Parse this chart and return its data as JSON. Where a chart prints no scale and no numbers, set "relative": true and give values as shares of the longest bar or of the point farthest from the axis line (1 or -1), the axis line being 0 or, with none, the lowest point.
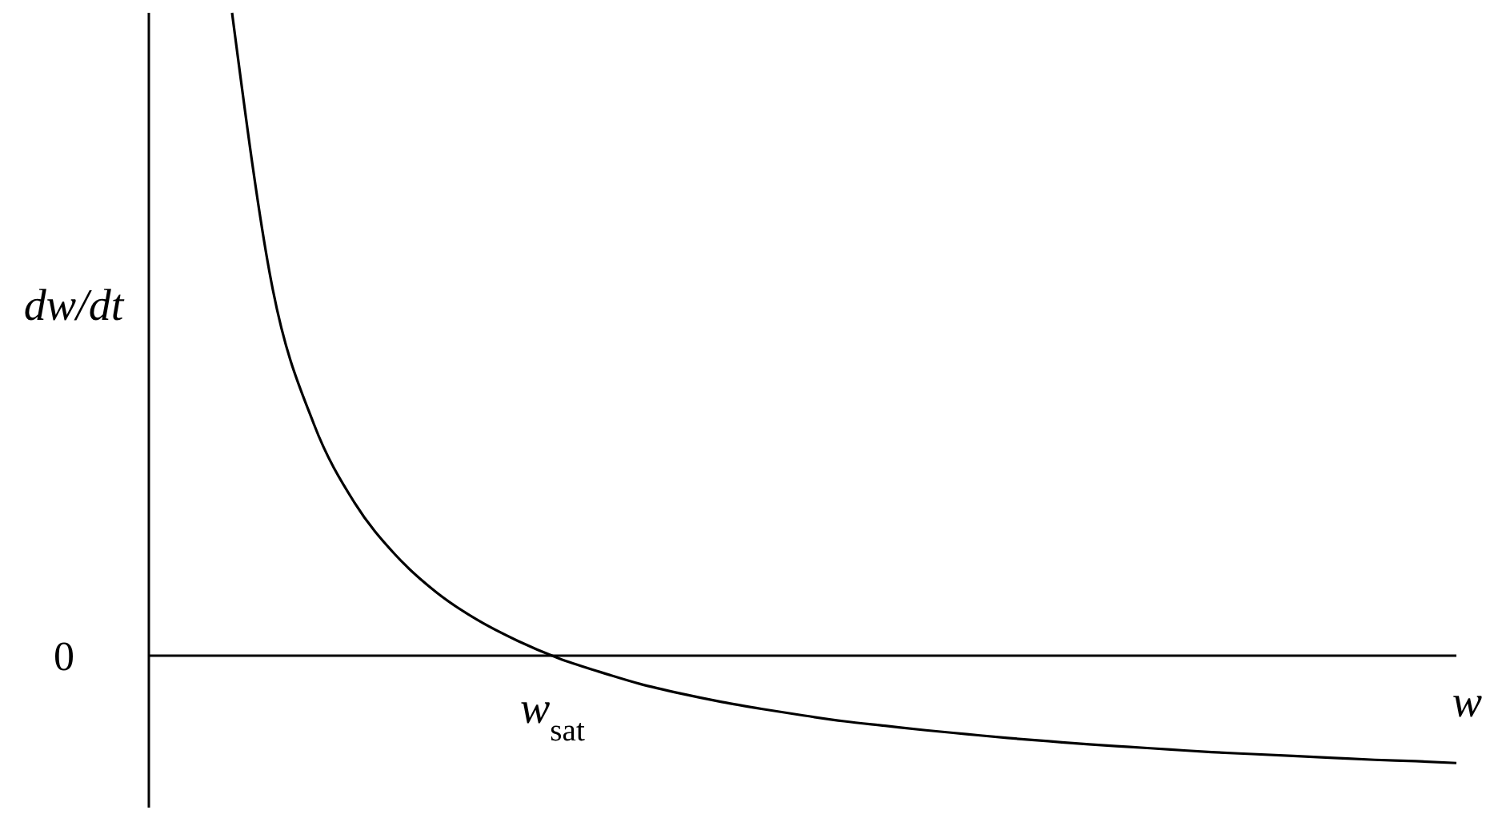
{
  "chart_data": {
    "type": "line",
    "relative": true,
    "xlabel": "w",
    "ylabel": "dw/dt",
    "categories": [
      null,
      null,
      null,
      null,
      null,
      null,
      null,
      null,
      null,
      null,
      null,
      null,
      null,
      null,
      null,
      null,
      null,
      null,
      null,
      null,
      null,
      null,
      null,
      null,
      null,
      null,
      null,
      null,
      null,
      null,
      null,
      null,
      null
    ],
    "series": [
      {
        "color": "#000000",
        "values": [
          null,
          null,
          1.0,
          0.569,
          0.361,
          0.238,
          0.157,
          0.099,
          0.056,
          0.023,
          -0.004,
          -0.025,
          -0.044,
          -0.059,
          -0.072,
          -0.083,
          -0.093,
          -0.102,
          -0.109,
          -0.116,
          -0.122,
          -0.128,
          -0.133,
          -0.138,
          -0.142,
          -0.146,
          -0.15,
          -0.153,
          -0.156,
          -0.159,
          -0.162,
          -0.164,
          -0.167
        ]
      }
    ],
    "ref_lines": [
      {
        "axis": "y",
        "value": 0,
        "label": "0"
      }
    ],
    "annotations": [
      "w$_{sat}$"
    ],
    "marker": "none",
    "line_style": "solid"
  }
}
